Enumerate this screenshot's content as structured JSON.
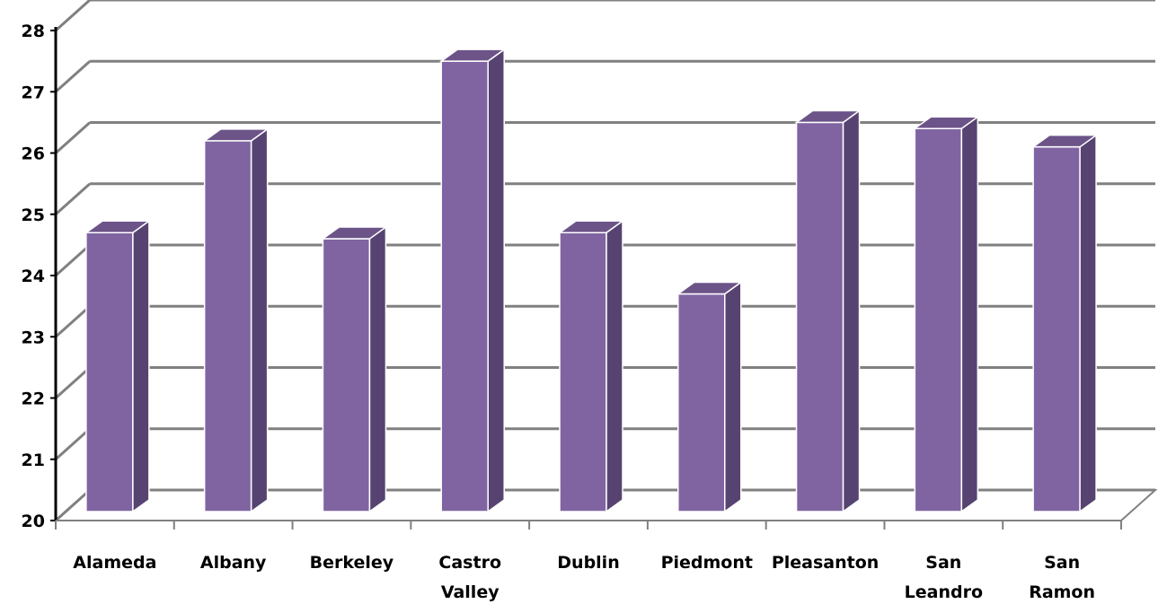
{
  "chart_data": {
    "type": "bar",
    "categories": [
      "Alameda",
      "Albany",
      "Berkeley",
      "Castro Valley",
      "Dublin",
      "Piedmont",
      "Pleasanton",
      "San Leandro",
      "San Ramon"
    ],
    "category_lines": [
      [
        "Alameda"
      ],
      [
        "Albany"
      ],
      [
        "Berkeley"
      ],
      [
        "Castro",
        "Valley"
      ],
      [
        "Dublin"
      ],
      [
        "Piedmont"
      ],
      [
        "Pleasanton"
      ],
      [
        "San",
        "Leandro"
      ],
      [
        "San",
        "Ramon"
      ]
    ],
    "values": [
      24.7,
      26.2,
      24.6,
      27.5,
      24.7,
      23.7,
      26.5,
      26.4,
      26.1
    ],
    "ylim": [
      20,
      28
    ],
    "yticks": [
      "20",
      "21",
      "22",
      "23",
      "24",
      "25",
      "26",
      "27",
      "28"
    ],
    "grid": true,
    "three_d": true,
    "colors": {
      "bar_front": "#8064a2",
      "bar_side": "#574371",
      "bar_top": "#6c5489",
      "grid": "#808080",
      "axis": "#000000"
    }
  }
}
